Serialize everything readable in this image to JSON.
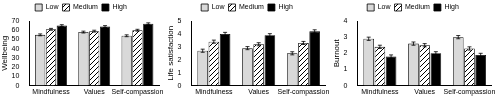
{
  "chart_data": [
    {
      "type": "bar",
      "y_label": "Wellbeing",
      "categories": [
        "Mindfulness",
        "Values",
        "Self-compassion"
      ],
      "series": [
        {
          "name": "Low",
          "color": "#d9d9d9",
          "values": [
            55,
            58,
            54
          ],
          "errors": [
            1,
            1,
            1
          ]
        },
        {
          "name": "Medium",
          "color": "#000000",
          "marker": "diagonal",
          "values": [
            61,
            59,
            60
          ],
          "errors": [
            1,
            1,
            1
          ]
        },
        {
          "name": "High",
          "color": "#000000",
          "values": [
            65,
            64,
            67
          ],
          "errors": [
            1,
            1,
            1
          ]
        }
      ],
      "ylim": [
        0,
        70
      ],
      "yticks": [
        0,
        10,
        20,
        30,
        40,
        50,
        60,
        70
      ],
      "grid": false,
      "legend": "top"
    },
    {
      "type": "bar",
      "y_label": "Life satisfaction",
      "categories": [
        "Mindfulness",
        "Values",
        "Self-compassion"
      ],
      "series": [
        {
          "name": "Low",
          "color": "#d9d9d9",
          "values": [
            2.7,
            2.9,
            2.5
          ],
          "errors": [
            0.12,
            0.12,
            0.12
          ]
        },
        {
          "name": "Medium",
          "color": "#000000",
          "marker": "diagonal",
          "values": [
            3.4,
            3.2,
            3.3
          ],
          "errors": [
            0.12,
            0.12,
            0.12
          ]
        },
        {
          "name": "High",
          "color": "#000000",
          "values": [
            4.0,
            3.9,
            4.2
          ],
          "errors": [
            0.12,
            0.12,
            0.12
          ]
        }
      ],
      "ylim": [
        0,
        5
      ],
      "yticks": [
        0,
        1,
        2,
        3,
        4,
        5
      ],
      "grid": false,
      "legend": "top"
    },
    {
      "type": "bar",
      "y_label": "Burnout",
      "categories": [
        "Mindfulness",
        "Values",
        "Self-compassion"
      ],
      "series": [
        {
          "name": "Low",
          "color": "#d9d9d9",
          "values": [
            2.9,
            2.6,
            3.0
          ],
          "errors": [
            0.1,
            0.1,
            0.1
          ]
        },
        {
          "name": "Medium",
          "color": "#000000",
          "marker": "diagonal",
          "values": [
            2.4,
            2.5,
            2.3
          ],
          "errors": [
            0.1,
            0.1,
            0.1
          ]
        },
        {
          "name": "High",
          "color": "#000000",
          "values": [
            1.8,
            2.0,
            1.9
          ],
          "errors": [
            0.1,
            0.1,
            0.1
          ]
        }
      ],
      "ylim": [
        0,
        4
      ],
      "yticks": [
        0,
        1,
        2,
        3,
        4
      ],
      "grid": false,
      "legend": "top"
    }
  ]
}
